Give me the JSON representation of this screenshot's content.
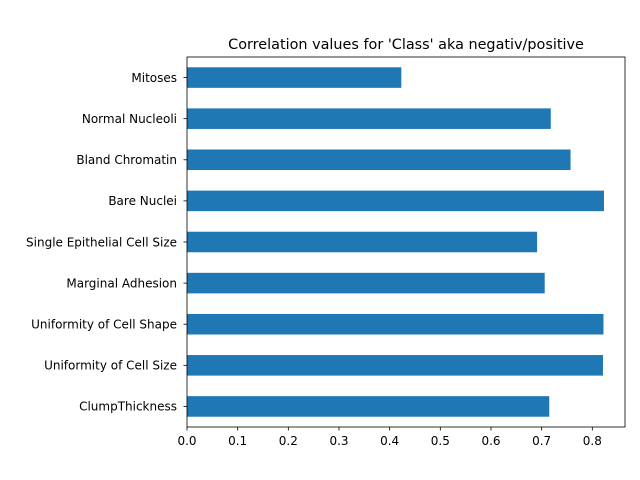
{
  "chart_data": {
    "type": "bar",
    "orientation": "horizontal",
    "title": "Correlation values for 'Class' aka negativ/positive",
    "xlabel": "",
    "ylabel": "",
    "categories": [
      "ClumpThickness",
      "Uniformity of Cell Size",
      "Uniformity of Cell Shape",
      "Marginal Adhesion",
      "Single Epithelial Cell Size",
      "Bare Nuclei",
      "Bland Chromatin",
      "Normal Nucleoli",
      "Mitoses"
    ],
    "values": [
      0.715,
      0.821,
      0.822,
      0.706,
      0.691,
      0.823,
      0.757,
      0.718,
      0.423
    ],
    "xlim": [
      0,
      0.8645
    ],
    "xticks": [
      {
        "value": 0.0,
        "label": "0.0"
      },
      {
        "value": 0.1,
        "label": "0.1"
      },
      {
        "value": 0.2,
        "label": "0.2"
      },
      {
        "value": 0.3,
        "label": "0.3"
      },
      {
        "value": 0.4,
        "label": "0.4"
      },
      {
        "value": 0.5,
        "label": "0.5"
      },
      {
        "value": 0.6,
        "label": "0.6"
      },
      {
        "value": 0.7,
        "label": "0.7"
      },
      {
        "value": 0.8,
        "label": "0.8"
      }
    ],
    "grid": false,
    "legend": "none",
    "bar_color": "#1f77b4"
  }
}
